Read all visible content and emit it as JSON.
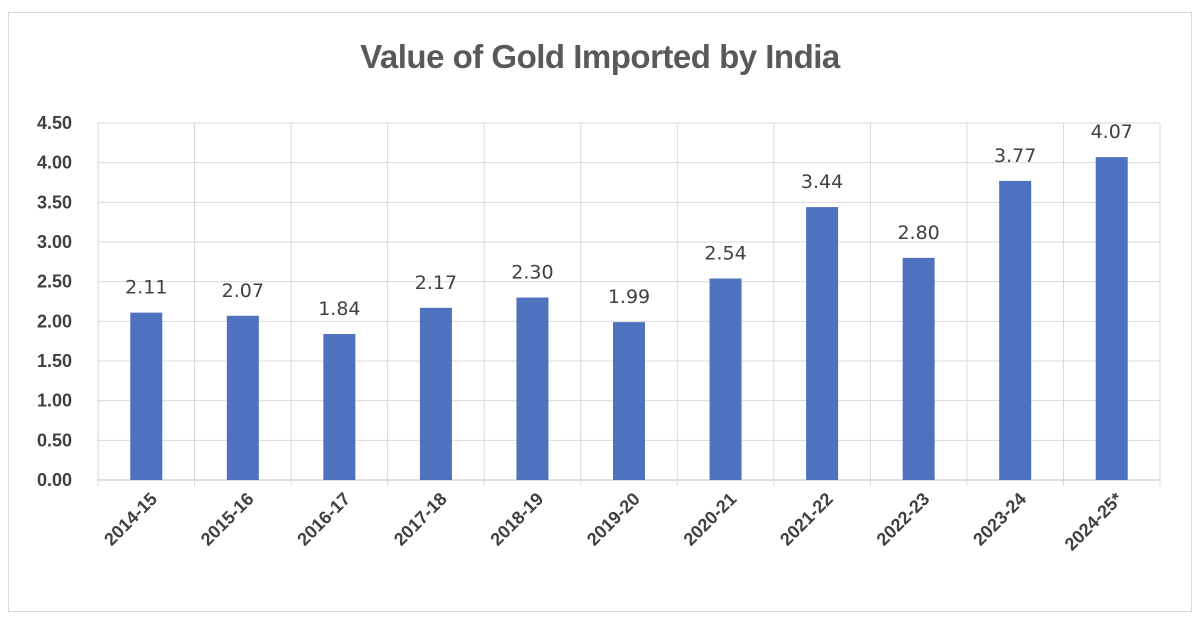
{
  "chart_data": {
    "type": "bar",
    "title": "Value of Gold Imported by India",
    "xlabel": "",
    "ylabel": "",
    "categories": [
      "2014-15",
      "2015-16",
      "2016-17",
      "2017-18",
      "2018-19",
      "2019-20",
      "2020-21",
      "2021-22",
      "2022-23",
      "2023-24",
      "2024-25*"
    ],
    "values": [
      2.11,
      2.07,
      1.84,
      2.17,
      2.3,
      1.99,
      2.54,
      3.44,
      2.8,
      3.77,
      4.07
    ],
    "data_labels": [
      "2.11",
      "2.07",
      "1.84",
      "2.17",
      "2.30",
      "1.99",
      "2.54",
      "3.44",
      "2.80",
      "3.77",
      "4.07"
    ],
    "ylim": [
      0,
      4.5
    ],
    "yticks": [
      "0.00",
      "0.50",
      "1.00",
      "1.50",
      "2.00",
      "2.50",
      "3.00",
      "3.50",
      "4.00",
      "4.50"
    ],
    "grid": true,
    "legend": "none",
    "bar_color": "#4f72be"
  }
}
